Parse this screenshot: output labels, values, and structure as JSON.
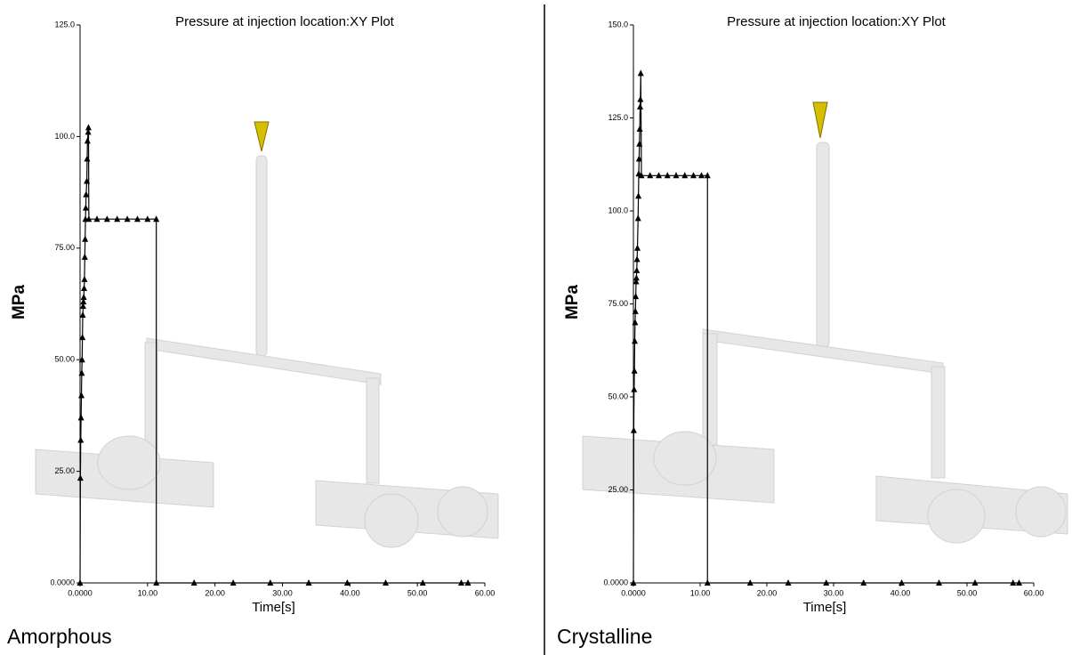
{
  "chart_data": [
    {
      "type": "line",
      "title": "Pressure at injection location:XY Plot",
      "x_label": "Time[s]",
      "y_label": "MPa",
      "caption": "Amorphous",
      "marker": "triangle",
      "color": "#000000",
      "x": [
        0,
        0.05,
        0.1,
        0.15,
        0.2,
        0.25,
        0.3,
        0.35,
        0.4,
        0.45,
        0.5,
        0.55,
        0.6,
        0.65,
        0.7,
        0.75,
        0.8,
        0.85,
        0.9,
        1.0,
        1.05,
        1.1,
        1.2,
        1.25,
        1.3,
        2.5,
        4,
        5.5,
        7,
        8.5,
        10,
        11.3,
        11.3,
        16.9,
        22.7,
        28.2,
        33.9,
        39.6,
        45.3,
        50.8,
        56.5,
        57.5
      ],
      "values": [
        0,
        23.5,
        32,
        37,
        42,
        47,
        50,
        55,
        60,
        62,
        63,
        64,
        66,
        68,
        73,
        77,
        81.5,
        84,
        87,
        90,
        95,
        99,
        101,
        102,
        81.5,
        81.5,
        81.5,
        81.5,
        81.5,
        81.5,
        81.5,
        81.5,
        0,
        0,
        0,
        0,
        0,
        0,
        0,
        0,
        0,
        0
      ],
      "xlim": [
        0,
        60
      ],
      "xticks": [
        {
          "value": 0,
          "label": "0.0000"
        },
        {
          "value": 10,
          "label": "10.00"
        },
        {
          "value": 20,
          "label": "20.00"
        },
        {
          "value": 30,
          "label": "30.00"
        },
        {
          "value": 40,
          "label": "40.00"
        },
        {
          "value": 50,
          "label": "50.00"
        },
        {
          "value": 60,
          "label": "60.00"
        }
      ],
      "ylim": [
        0,
        125
      ],
      "yticks": [
        {
          "value": 0,
          "label": "0.0000"
        },
        {
          "value": 25,
          "label": "25.00"
        },
        {
          "value": 50,
          "label": "50.00"
        },
        {
          "value": 75,
          "label": "75.00"
        },
        {
          "value": 100,
          "label": "100.0"
        },
        {
          "value": 125,
          "label": "125.0"
        }
      ]
    },
    {
      "type": "line",
      "title": "Pressure at injection location:XY Plot",
      "x_label": "Time[s]",
      "y_label": "MPa",
      "caption": "Crystalline",
      "marker": "triangle",
      "color": "#000000",
      "x": [
        0,
        0.05,
        0.1,
        0.15,
        0.2,
        0.25,
        0.3,
        0.35,
        0.4,
        0.45,
        0.5,
        0.55,
        0.6,
        0.7,
        0.75,
        0.8,
        0.85,
        0.9,
        0.95,
        1.0,
        1.05,
        1.1,
        1.2,
        2.5,
        3.8,
        5.1,
        6.4,
        7.7,
        9,
        10.2,
        11.1,
        11.1,
        17.5,
        23.2,
        28.9,
        34.5,
        40.2,
        45.8,
        51.2,
        56.9,
        57.8
      ],
      "values": [
        0,
        41,
        52,
        57,
        65,
        70,
        73,
        77,
        81,
        82,
        84,
        87,
        90,
        98,
        104,
        110,
        114,
        118,
        122,
        128,
        130,
        137,
        109.5,
        109.5,
        109.5,
        109.5,
        109.5,
        109.5,
        109.5,
        109.5,
        109.5,
        0,
        0,
        0,
        0,
        0,
        0,
        0,
        0,
        0,
        0
      ],
      "xlim": [
        0,
        60
      ],
      "xticks": [
        {
          "value": 0,
          "label": "0.0000"
        },
        {
          "value": 10,
          "label": "10.00"
        },
        {
          "value": 20,
          "label": "20.00"
        },
        {
          "value": 30,
          "label": "30.00"
        },
        {
          "value": 40,
          "label": "40.00"
        },
        {
          "value": 50,
          "label": "50.00"
        },
        {
          "value": 60,
          "label": "60.00"
        }
      ],
      "ylim": [
        0,
        150
      ],
      "yticks": [
        {
          "value": 0,
          "label": "0.0000"
        },
        {
          "value": 25,
          "label": "25.00"
        },
        {
          "value": 50,
          "label": "50.00"
        },
        {
          "value": 75,
          "label": "75.00"
        },
        {
          "value": 100,
          "label": "100.0"
        },
        {
          "value": 125,
          "label": "125.0"
        },
        {
          "value": 150,
          "label": "150.0"
        }
      ]
    }
  ]
}
